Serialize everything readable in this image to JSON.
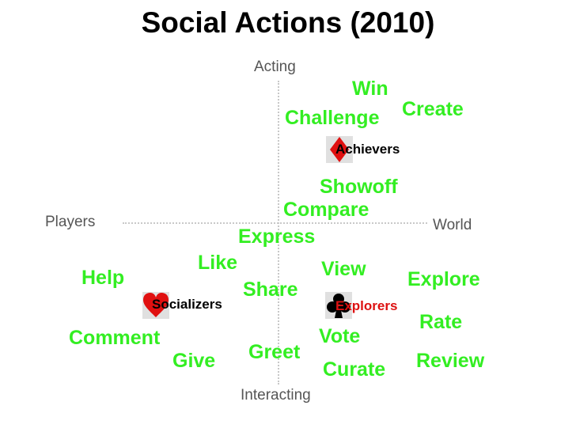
{
  "title": "Social Actions (2010)",
  "axes": {
    "top": "Acting",
    "bottom": "Interacting",
    "left": "Players",
    "right": "World"
  },
  "player_types": {
    "achievers": {
      "label": "Achievers",
      "suit": "diamond-icon",
      "color": "#000000"
    },
    "socializers": {
      "label": "Socializers",
      "suit": "heart-icon",
      "color": "#000000"
    },
    "explorers": {
      "label": "Explorers",
      "suit": "club-icon",
      "color": "#dd1111"
    }
  },
  "actions": {
    "win": "Win",
    "create": "Create",
    "challenge": "Challenge",
    "showoff": "Showoff",
    "compare": "Compare",
    "express": "Express",
    "like": "Like",
    "view": "View",
    "help": "Help",
    "share": "Share",
    "explore": "Explore",
    "rate": "Rate",
    "comment": "Comment",
    "vote": "Vote",
    "greet": "Greet",
    "give": "Give",
    "review": "Review",
    "curate": "Curate"
  },
  "colors": {
    "action": "#33ee22",
    "axis_text": "#555555",
    "suit_red": "#e01010"
  }
}
